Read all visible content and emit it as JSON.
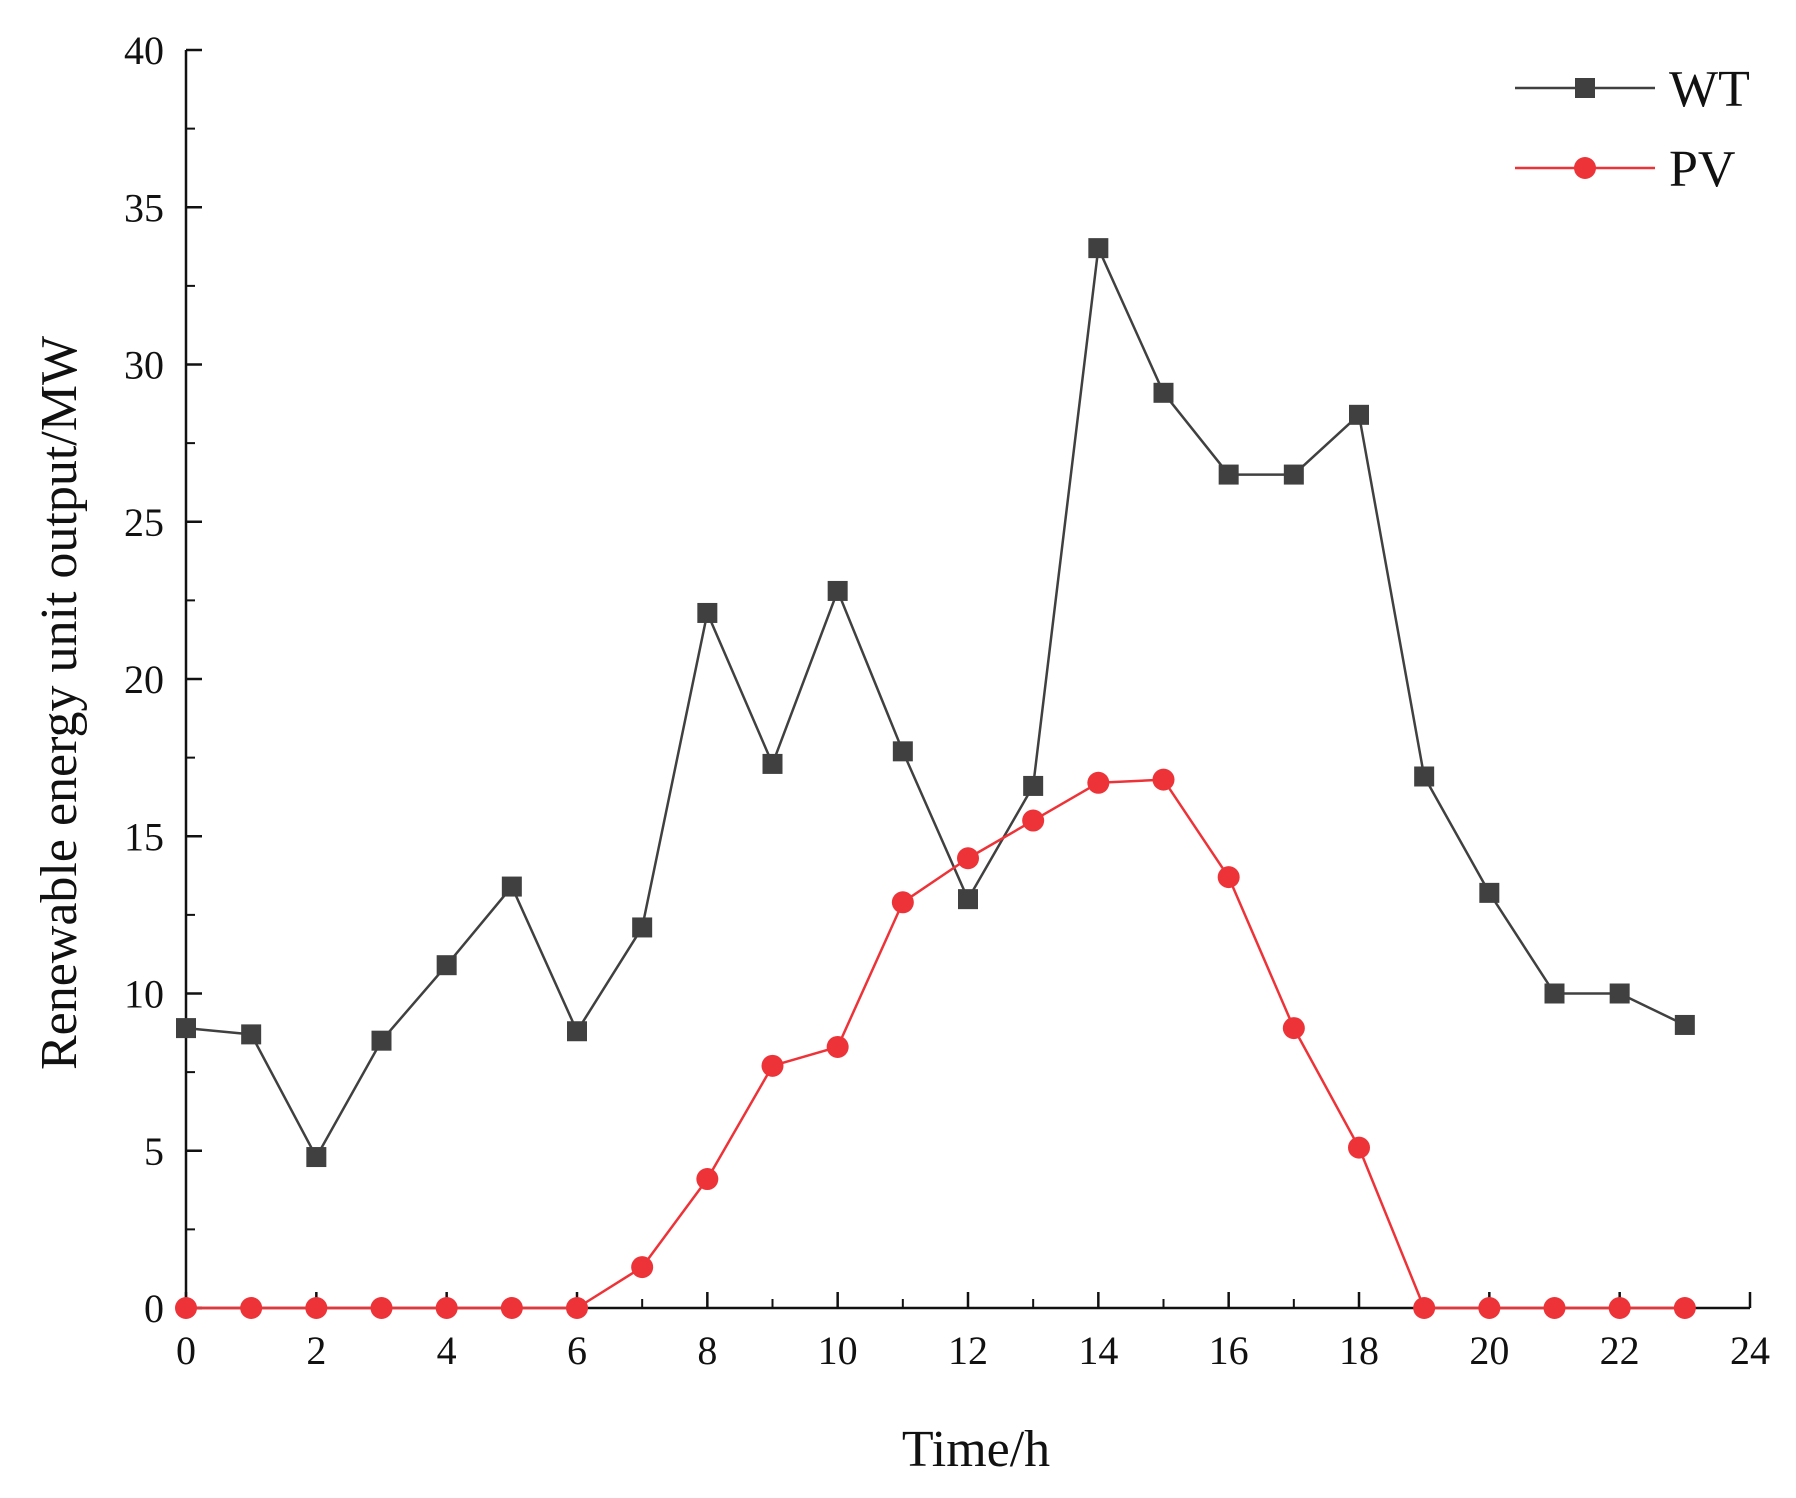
{
  "chart_data": {
    "type": "line",
    "title": "",
    "xlabel": "Time/h",
    "ylabel": "Renewable energy unit output/MW",
    "xlim": [
      0,
      24
    ],
    "ylim": [
      0,
      40
    ],
    "xticks": [
      0,
      2,
      4,
      6,
      8,
      10,
      12,
      14,
      16,
      18,
      20,
      22,
      24
    ],
    "yticks": [
      0,
      5,
      10,
      15,
      20,
      25,
      30,
      35,
      40
    ],
    "x": [
      0,
      1,
      2,
      3,
      4,
      5,
      6,
      7,
      8,
      9,
      10,
      11,
      12,
      13,
      14,
      15,
      16,
      17,
      18,
      19,
      20,
      21,
      22,
      23
    ],
    "series": [
      {
        "name": "WT",
        "color": "#404040",
        "marker": "square",
        "values": [
          8.9,
          8.7,
          4.8,
          8.5,
          10.9,
          13.4,
          8.8,
          12.1,
          22.1,
          17.3,
          22.8,
          17.7,
          13.0,
          16.6,
          33.7,
          29.1,
          26.5,
          26.5,
          28.4,
          16.9,
          13.2,
          10.0,
          10.0,
          9.0
        ]
      },
      {
        "name": "PV",
        "color": "#ee3338",
        "marker": "circle",
        "values": [
          0,
          0,
          0,
          0,
          0,
          0,
          0,
          1.3,
          4.1,
          7.7,
          8.3,
          12.9,
          14.3,
          15.5,
          16.7,
          16.8,
          13.7,
          8.9,
          5.1,
          0,
          0,
          0,
          0,
          0
        ]
      }
    ],
    "legend": "top-right",
    "grid": false
  }
}
